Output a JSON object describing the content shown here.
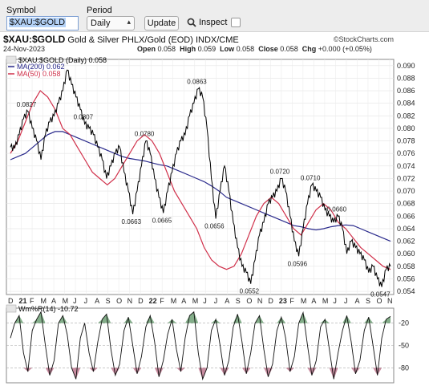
{
  "toolbar": {
    "symbol_label": "Symbol",
    "symbol_value": "$XAU:$GOLD",
    "period_label": "Period",
    "period_value": "Daily",
    "update_label": "Update",
    "inspect_label": "Inspect"
  },
  "chart_header": {
    "symbol": "$XAU:$GOLD",
    "description": "Gold & Silver PHLX/Gold (EOD)",
    "exchange": "INDX/CME",
    "logo": "©StockCharts.com",
    "date": "24-Nov-2023",
    "open_label": "Open",
    "open": "0.058",
    "high_label": "High",
    "high": "0.059",
    "low_label": "Low",
    "low": "0.058",
    "close_label": "Close",
    "close": "0.058",
    "chg_label": "Chg",
    "chg": "+0.000 (+0.05%)"
  },
  "legend": {
    "main": "$XAU:$GOLD (Daily) 0.058",
    "ma200": "MA(200) 0.062",
    "ma50": "MA(50) 0.058",
    "wpr": "Wm%R(14) -10.72"
  },
  "colors": {
    "price": "#000000",
    "ma200": "#2a2a8c",
    "ma50": "#d0304a",
    "wpr_fill": "#1f6b2a",
    "wpr_low_fill": "#9b2e52"
  },
  "chart_data": {
    "type": "line",
    "title": "$XAU:$GOLD Gold & Silver PHLX/Gold (EOD)",
    "x_ticks": [
      "D",
      "21",
      "F",
      "M",
      "A",
      "M",
      "J",
      "J",
      "A",
      "S",
      "O",
      "N",
      "D",
      "22",
      "F",
      "M",
      "A",
      "M",
      "J",
      "J",
      "A",
      "S",
      "O",
      "N",
      "D",
      "23",
      "F",
      "M",
      "A",
      "M",
      "J",
      "J",
      "A",
      "S",
      "O",
      "N"
    ],
    "ylim": [
      0.0535,
      0.091
    ],
    "y_ticks": [
      "0.090",
      "0.088",
      "0.086",
      "0.084",
      "0.082",
      "0.080",
      "0.078",
      "0.076",
      "0.074",
      "0.072",
      "0.070",
      "0.068",
      "0.066",
      "0.064",
      "0.062",
      "0.060",
      "0.058",
      "0.056",
      "0.054"
    ],
    "price": [
      0.077,
      0.0768,
      0.079,
      0.0815,
      0.0827,
      0.08,
      0.078,
      0.075,
      0.079,
      0.081,
      0.082,
      0.084,
      0.086,
      0.0893,
      0.087,
      0.085,
      0.083,
      0.0807,
      0.08,
      0.079,
      0.077,
      0.075,
      0.072,
      0.074,
      0.076,
      0.077,
      0.073,
      0.07,
      0.0663,
      0.07,
      0.074,
      0.078,
      0.076,
      0.072,
      0.069,
      0.0665,
      0.07,
      0.073,
      0.076,
      0.078,
      0.079,
      0.082,
      0.084,
      0.0863,
      0.085,
      0.08,
      0.072,
      0.0656,
      0.07,
      0.074,
      0.07,
      0.065,
      0.061,
      0.058,
      0.057,
      0.0552,
      0.059,
      0.063,
      0.065,
      0.068,
      0.069,
      0.07,
      0.072,
      0.07,
      0.066,
      0.062,
      0.0596,
      0.064,
      0.068,
      0.071,
      0.07,
      0.069,
      0.067,
      0.066,
      0.065,
      0.066,
      0.064,
      0.06,
      0.062,
      0.061,
      0.06,
      0.059,
      0.057,
      0.058,
      0.056,
      0.0547,
      0.0575,
      0.058
    ],
    "ma200": [
      0.075,
      0.0755,
      0.076,
      0.077,
      0.078,
      0.079,
      0.0795,
      0.0795,
      0.079,
      0.0785,
      0.078,
      0.0775,
      0.077,
      0.0765,
      0.076,
      0.0755,
      0.0752,
      0.075,
      0.0748,
      0.0745,
      0.0742,
      0.074,
      0.0735,
      0.073,
      0.0725,
      0.072,
      0.0715,
      0.0708,
      0.07,
      0.069,
      0.0685,
      0.068,
      0.0675,
      0.067,
      0.0665,
      0.066,
      0.0655,
      0.065,
      0.0645,
      0.0643,
      0.064,
      0.0638,
      0.064,
      0.0643,
      0.0645,
      0.0646,
      0.0645,
      0.064,
      0.0635,
      0.063,
      0.0625,
      0.062
    ],
    "ma50": [
      0.076,
      0.078,
      0.081,
      0.084,
      0.086,
      0.085,
      0.083,
      0.08,
      0.079,
      0.077,
      0.075,
      0.073,
      0.072,
      0.071,
      0.072,
      0.074,
      0.076,
      0.078,
      0.079,
      0.078,
      0.076,
      0.073,
      0.07,
      0.068,
      0.066,
      0.064,
      0.061,
      0.059,
      0.058,
      0.0575,
      0.058,
      0.06,
      0.063,
      0.066,
      0.068,
      0.069,
      0.068,
      0.066,
      0.064,
      0.063,
      0.065,
      0.067,
      0.068,
      0.067,
      0.065,
      0.064,
      0.0625,
      0.061,
      0.06,
      0.059,
      0.058,
      0.0575
    ],
    "annotations": [
      {
        "label": "0.0827",
        "x": 4,
        "y": 0.0827
      },
      {
        "label": "0.0807",
        "x": 17,
        "y": 0.0807
      },
      {
        "label": "0.0780",
        "x": 31,
        "y": 0.078
      },
      {
        "label": "0.0663",
        "x": 28,
        "y": 0.0663
      },
      {
        "label": "0.0665",
        "x": 35,
        "y": 0.0665
      },
      {
        "label": "0.0863",
        "x": 43,
        "y": 0.0863
      },
      {
        "label": "0.0656",
        "x": 47,
        "y": 0.0656
      },
      {
        "label": "0.0552",
        "x": 55,
        "y": 0.0552
      },
      {
        "label": "0.0720",
        "x": 62,
        "y": 0.072
      },
      {
        "label": "0.0596",
        "x": 66,
        "y": 0.0596
      },
      {
        "label": "0.0710",
        "x": 69,
        "y": 0.071
      },
      {
        "label": "0.0660",
        "x": 75,
        "y": 0.066
      },
      {
        "label": "0.0547",
        "x": 85,
        "y": 0.0547
      }
    ],
    "wpr": {
      "ylim": [
        -100,
        0
      ],
      "y_ticks": [
        "-20",
        "-50",
        "-80"
      ],
      "values": [
        -40,
        -20,
        -10,
        -60,
        -85,
        -30,
        -15,
        -5,
        -50,
        -90,
        -70,
        -20,
        -10,
        -35,
        -80,
        -95,
        -40,
        -20,
        -60,
        -85,
        -45,
        -15,
        -8,
        -55,
        -90,
        -75,
        -30,
        -12,
        -50,
        -88,
        -65,
        -25,
        -10,
        -45,
        -92,
        -70,
        -35,
        -15,
        -55,
        -85,
        -40,
        -10,
        -5,
        -60,
        -95,
        -80,
        -30,
        -15,
        -50,
        -90,
        -70,
        -25,
        -8,
        -45,
        -88,
        -60,
        -20,
        -10,
        -55,
        -92,
        -75,
        -30,
        -12,
        -40,
        -85,
        -65,
        -20,
        -6,
        -50,
        -90,
        -70,
        -25,
        -15,
        -55,
        -95,
        -60,
        -30,
        -10,
        -45,
        -88,
        -70,
        -30,
        -12,
        -50,
        -90,
        -40,
        -15,
        -11
      ]
    }
  }
}
